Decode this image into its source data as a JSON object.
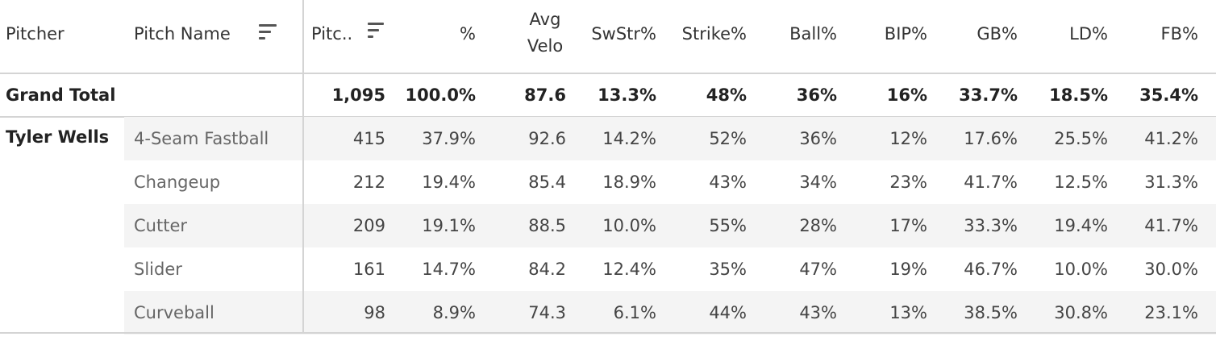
{
  "columns": {
    "pitcher": "Pitcher",
    "pitch_name": "Pitch Name",
    "pitches": "Pitc..",
    "pct": "%",
    "avg_velo_1": "Avg",
    "avg_velo_2": "Velo",
    "swstr": "SwStr%",
    "strike": "Strike%",
    "ball": "Ball%",
    "bip": "BIP%",
    "gb": "GB%",
    "ld": "LD%",
    "fb": "FB%"
  },
  "grand_total": {
    "label": "Grand Total",
    "values": [
      "1,095",
      "100.0%",
      "87.6",
      "13.3%",
      "48%",
      "36%",
      "16%",
      "33.7%",
      "18.5%",
      "35.4%"
    ]
  },
  "pitcher_name": "Tyler Wells",
  "rows": [
    {
      "name": "4-Seam Fastball",
      "values": [
        "415",
        "37.9%",
        "92.6",
        "14.2%",
        "52%",
        "36%",
        "12%",
        "17.6%",
        "25.5%",
        "41.2%"
      ]
    },
    {
      "name": "Changeup",
      "values": [
        "212",
        "19.4%",
        "85.4",
        "18.9%",
        "43%",
        "34%",
        "23%",
        "41.7%",
        "12.5%",
        "31.3%"
      ]
    },
    {
      "name": "Cutter",
      "values": [
        "209",
        "19.1%",
        "88.5",
        "10.0%",
        "55%",
        "28%",
        "17%",
        "33.3%",
        "19.4%",
        "41.7%"
      ]
    },
    {
      "name": "Slider",
      "values": [
        "161",
        "14.7%",
        "84.2",
        "12.4%",
        "35%",
        "47%",
        "19%",
        "46.7%",
        "10.0%",
        "30.0%"
      ]
    },
    {
      "name": "Curveball",
      "values": [
        "98",
        "8.9%",
        "74.3",
        "6.1%",
        "44%",
        "43%",
        "13%",
        "38.5%",
        "30.8%",
        "23.1%"
      ]
    }
  ],
  "icons": {
    "pitch_name_sort": "sort-descending-icon",
    "pitches_sort": "sort-descending-icon"
  },
  "colors": {
    "row_shade": "#f4f4f4",
    "divider": "#d4d4d4"
  }
}
